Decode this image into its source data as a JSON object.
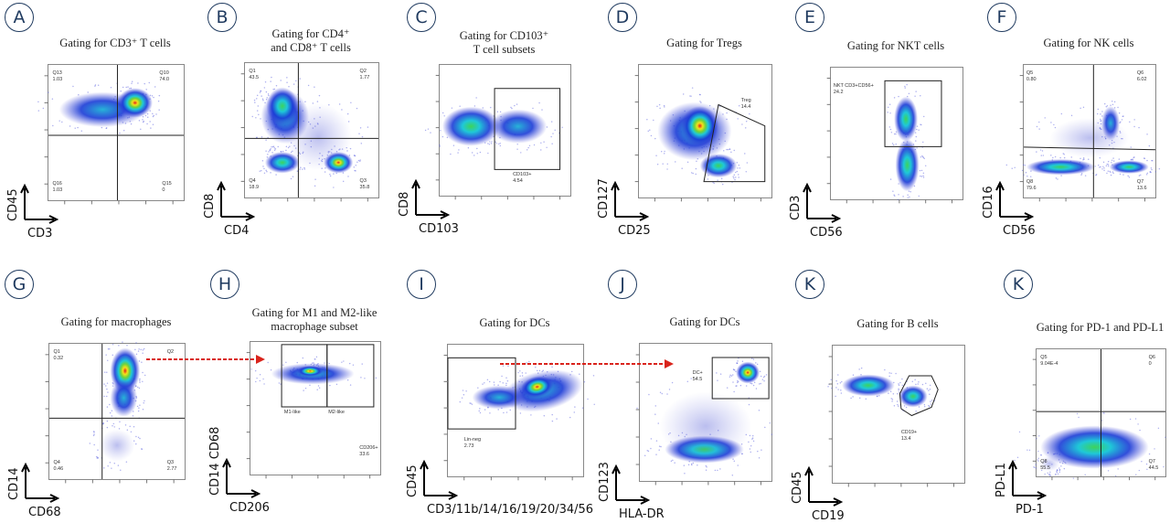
{
  "figure": {
    "panels": [
      {
        "letter": "A",
        "title": "Gating for CD3⁺ T cells",
        "x_label": "CD3",
        "y_label": "CD45",
        "gate_labels": [
          "Q13\n1.03",
          "Q10\n74.0",
          "Q16\n1.03",
          "Q15\n0"
        ]
      },
      {
        "letter": "B",
        "title": "Gating for CD4⁺\nand CD8⁺ T cells",
        "x_label": "CD4",
        "y_label": "CD8",
        "gate_labels": [
          "Q1\n43.5",
          "Q2\n1.77",
          "Q4\n18.9",
          "Q3\n35.8"
        ]
      },
      {
        "letter": "C",
        "title": "Gating for CD103⁺\nT cell subsets",
        "x_label": "CD103",
        "y_label": "CD8",
        "gate_labels": [
          "CD103+\n4.54"
        ]
      },
      {
        "letter": "D",
        "title": "Gating for Tregs",
        "x_label": "CD25",
        "y_label": "CD127",
        "gate_labels": [
          "Treg\n14.4"
        ]
      },
      {
        "letter": "E",
        "title": "Gating for NKT cells",
        "x_label": "CD56",
        "y_label": "CD3",
        "gate_labels": [
          "NKT CD3+CD56+\n24.2"
        ]
      },
      {
        "letter": "F",
        "title": "Gating for NK cells",
        "x_label": "CD56",
        "y_label": "CD16",
        "gate_labels": [
          "Q5\n0.80",
          "Q6\n6.02",
          "Q8\n79.6",
          "Q7\n13.6"
        ]
      },
      {
        "letter": "G",
        "title": "Gating for macrophages",
        "x_label": "CD68",
        "y_label": "CD14",
        "gate_labels": [
          "Q1\n0.32",
          "Q2",
          "Q4\n0.46",
          "Q3\n2.77"
        ]
      },
      {
        "letter": "H",
        "title": "Gating for M1 and M2-like\nmacrophage subset",
        "x_label": "CD206",
        "y_label": "CD14 CD68",
        "gate_labels": [
          "M1-like",
          "M2-like",
          "CD206+\n33.6"
        ]
      },
      {
        "letter": "I",
        "title": "Gating for DCs",
        "x_label": "CD3/11b/14/16/19/20/34/56",
        "y_label": "CD45",
        "gate_labels": [
          "Lin-neg\n2.73"
        ]
      },
      {
        "letter": "J",
        "title": "Gating for DCs",
        "x_label": "HLA-DR",
        "y_label": "CD123",
        "gate_labels": [
          "DC+\n54.5"
        ]
      },
      {
        "letter": "K",
        "title": "Gating for B cells",
        "x_label": "CD19",
        "y_label": "CD45",
        "gate_labels": [
          "CD19+\n13.4"
        ]
      },
      {
        "letter": "K",
        "title": "Gating for PD-1 and PD-L1",
        "x_label": "PD-1",
        "y_label": "PD-L1",
        "gate_labels": [
          "Q5\n9.04E-4",
          "Q6\n0",
          "Q8\n55.5",
          "Q7\n44.5"
        ]
      }
    ],
    "colors": {
      "letter_circle": "#1f3a5f",
      "connector_arrow": "#d9241c",
      "gate_line": "#222222"
    }
  }
}
